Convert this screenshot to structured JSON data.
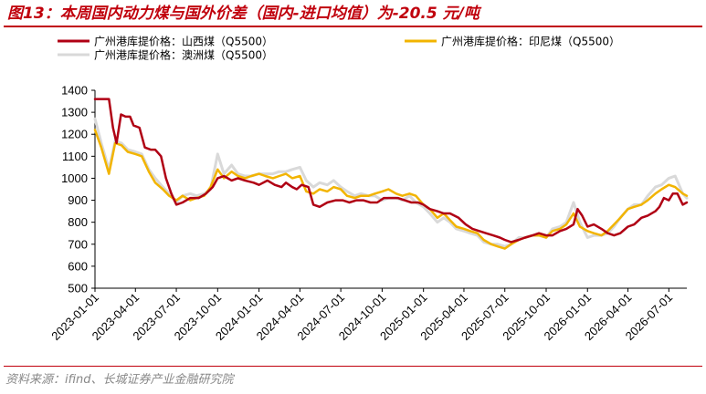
{
  "header": {
    "title": "图13：本周国内动力煤与国外价差（国内-进口均值）为-20.5 元/吨"
  },
  "footer": {
    "source": "资料来源：ifind、长城证券产业金融研究院"
  },
  "colors": {
    "accent": "#c0000c",
    "source_text": "#888888"
  },
  "chart_data": {
    "type": "line",
    "title": "图13：本周国内动力煤与国外价差（国内-进口均值）为-20.5 元/吨",
    "xlabel": "",
    "ylabel": "",
    "ylim": [
      500,
      1400
    ],
    "yticks": [
      500,
      600,
      700,
      800,
      900,
      1000,
      1100,
      1200,
      1300,
      1400
    ],
    "xticks": [
      "2023-01-01",
      "2023-04-01",
      "2023-07-01",
      "2023-10-01",
      "2024-01-01",
      "2024-04-01",
      "2024-07-01",
      "2024-10-01",
      "2025-01-01",
      "2025-04-01",
      "2025-07-01",
      "2025-10-01",
      "2026-01-01",
      "2026-04-01",
      "2026-07-01"
    ],
    "xlim": [
      "2023-01-01",
      "2026-08-10"
    ],
    "grid": false,
    "legend_position": "top",
    "series": [
      {
        "name": "广州港库提价格：山西煤（Q5500）",
        "color": "#b00014",
        "x": [
          "2023-01-01",
          "2023-01-20",
          "2023-02-01",
          "2023-02-10",
          "2023-02-18",
          "2023-02-28",
          "2023-03-10",
          "2023-03-20",
          "2023-03-28",
          "2023-04-10",
          "2023-04-22",
          "2023-05-05",
          "2023-05-15",
          "2023-05-28",
          "2023-06-08",
          "2023-06-20",
          "2023-07-01",
          "2023-07-15",
          "2023-08-01",
          "2023-08-20",
          "2023-09-05",
          "2023-09-20",
          "2023-10-01",
          "2023-10-15",
          "2023-11-01",
          "2023-11-15",
          "2023-12-01",
          "2023-12-20",
          "2024-01-01",
          "2024-01-20",
          "2024-02-05",
          "2024-02-20",
          "2024-03-01",
          "2024-03-15",
          "2024-03-25",
          "2024-04-05",
          "2024-04-20",
          "2024-05-01",
          "2024-05-15",
          "2024-06-01",
          "2024-06-20",
          "2024-07-05",
          "2024-07-20",
          "2024-08-05",
          "2024-08-20",
          "2024-09-05",
          "2024-09-20",
          "2024-10-05",
          "2024-10-20",
          "2024-11-05",
          "2024-11-20",
          "2024-12-05",
          "2024-12-20",
          "2025-01-01",
          "2025-01-15",
          "2025-02-01",
          "2025-02-15",
          "2025-03-01",
          "2025-03-20",
          "2025-04-05",
          "2025-04-20",
          "2025-05-05",
          "2025-05-20",
          "2025-06-05",
          "2025-06-20",
          "2025-07-01",
          "2025-07-15",
          "2025-08-01",
          "2025-08-15",
          "2025-09-01",
          "2025-09-15",
          "2025-10-01",
          "2025-10-15",
          "2025-11-01",
          "2025-11-15",
          "2025-12-01",
          "2025-12-10",
          "2025-12-20",
          "2026-01-01",
          "2026-01-15",
          "2026-02-01",
          "2026-02-15",
          "2026-03-01",
          "2026-03-15",
          "2026-04-01",
          "2026-04-15",
          "2026-05-01",
          "2026-05-15",
          "2026-06-01",
          "2026-06-10",
          "2026-06-20",
          "2026-07-01",
          "2026-07-10",
          "2026-07-20",
          "2026-08-01",
          "2026-08-10"
        ],
        "values": [
          1360,
          1360,
          1360,
          1230,
          1160,
          1290,
          1280,
          1280,
          1240,
          1230,
          1140,
          1130,
          1130,
          1100,
          1000,
          930,
          880,
          890,
          910,
          910,
          930,
          960,
          1000,
          1010,
          990,
          1000,
          990,
          980,
          970,
          990,
          970,
          960,
          980,
          960,
          950,
          970,
          960,
          880,
          870,
          890,
          900,
          900,
          890,
          900,
          900,
          890,
          890,
          910,
          910,
          910,
          900,
          890,
          890,
          880,
          860,
          850,
          840,
          840,
          820,
          790,
          770,
          760,
          750,
          740,
          730,
          720,
          710,
          720,
          730,
          740,
          750,
          740,
          740,
          760,
          770,
          790,
          860,
          830,
          780,
          790,
          770,
          750,
          740,
          750,
          780,
          790,
          820,
          830,
          850,
          870,
          910,
          900,
          930,
          930,
          880,
          890
        ]
      },
      {
        "name": "广州港库提价格：印尼煤（Q5500）",
        "color": "#f2b400",
        "x": [
          "2023-01-01",
          "2023-01-15",
          "2023-02-01",
          "2023-02-15",
          "2023-03-01",
          "2023-03-15",
          "2023-04-01",
          "2023-04-15",
          "2023-05-01",
          "2023-05-15",
          "2023-06-01",
          "2023-06-15",
          "2023-07-01",
          "2023-07-15",
          "2023-08-01",
          "2023-08-15",
          "2023-09-01",
          "2023-09-15",
          "2023-10-01",
          "2023-10-15",
          "2023-11-01",
          "2023-11-15",
          "2023-12-01",
          "2023-12-15",
          "2024-01-01",
          "2024-01-15",
          "2024-02-01",
          "2024-02-15",
          "2024-03-01",
          "2024-03-15",
          "2024-04-01",
          "2024-04-15",
          "2024-05-01",
          "2024-05-15",
          "2024-06-01",
          "2024-06-15",
          "2024-07-01",
          "2024-07-15",
          "2024-08-01",
          "2024-08-15",
          "2024-09-01",
          "2024-09-15",
          "2024-10-01",
          "2024-10-15",
          "2024-11-01",
          "2024-11-15",
          "2024-12-01",
          "2024-12-15",
          "2025-01-01",
          "2025-01-15",
          "2025-02-01",
          "2025-02-15",
          "2025-03-01",
          "2025-03-15",
          "2025-04-01",
          "2025-04-15",
          "2025-05-01",
          "2025-05-15",
          "2025-06-01",
          "2025-06-15",
          "2025-07-01",
          "2025-07-15",
          "2025-08-01",
          "2025-08-15",
          "2025-09-01",
          "2025-09-15",
          "2025-10-01",
          "2025-10-15",
          "2025-11-01",
          "2025-11-15",
          "2025-12-01",
          "2025-12-15",
          "2026-01-01",
          "2026-01-15",
          "2026-02-01",
          "2026-02-15",
          "2026-03-01",
          "2026-03-15",
          "2026-04-01",
          "2026-04-15",
          "2026-05-01",
          "2026-05-15",
          "2026-06-01",
          "2026-06-15",
          "2026-07-01",
          "2026-07-15",
          "2026-08-01",
          "2026-08-10"
        ],
        "values": [
          1220,
          1140,
          1020,
          1160,
          1150,
          1120,
          1110,
          1100,
          1030,
          980,
          950,
          920,
          900,
          920,
          900,
          910,
          920,
          960,
          1040,
          1000,
          1030,
          1010,
          1000,
          1010,
          1020,
          1010,
          1000,
          1010,
          1020,
          1000,
          1010,
          940,
          930,
          950,
          940,
          960,
          950,
          920,
          910,
          920,
          920,
          930,
          940,
          950,
          930,
          920,
          930,
          920,
          880,
          860,
          820,
          840,
          810,
          780,
          770,
          760,
          750,
          720,
          700,
          690,
          680,
          700,
          720,
          730,
          740,
          740,
          730,
          760,
          770,
          790,
          840,
          780,
          760,
          750,
          740,
          760,
          790,
          820,
          860,
          870,
          880,
          900,
          930,
          950,
          970,
          960,
          930,
          920
        ]
      },
      {
        "name": "广州港库提价格：澳洲煤（Q5500）",
        "color": "#d9d9d9",
        "x": [
          "2023-01-01",
          "2023-01-15",
          "2023-02-01",
          "2023-02-15",
          "2023-03-01",
          "2023-03-15",
          "2023-04-01",
          "2023-04-15",
          "2023-05-01",
          "2023-05-15",
          "2023-06-01",
          "2023-06-15",
          "2023-07-01",
          "2023-07-15",
          "2023-08-01",
          "2023-08-15",
          "2023-09-01",
          "2023-09-15",
          "2023-10-01",
          "2023-10-15",
          "2023-11-01",
          "2023-11-15",
          "2023-12-01",
          "2023-12-15",
          "2024-01-01",
          "2024-01-15",
          "2024-02-01",
          "2024-02-15",
          "2024-03-01",
          "2024-03-15",
          "2024-04-01",
          "2024-04-15",
          "2024-05-01",
          "2024-05-15",
          "2024-06-01",
          "2024-06-15",
          "2024-07-01",
          "2024-07-15",
          "2024-08-01",
          "2024-08-15",
          "2024-09-01",
          "2024-09-15",
          "2024-10-01",
          "2024-10-15",
          "2024-11-01",
          "2024-11-15",
          "2024-12-01",
          "2024-12-15",
          "2025-01-01",
          "2025-01-15",
          "2025-02-01",
          "2025-02-15",
          "2025-03-01",
          "2025-03-15",
          "2025-04-01",
          "2025-04-15",
          "2025-05-01",
          "2025-05-15",
          "2025-06-01",
          "2025-06-15",
          "2025-07-01",
          "2025-07-15",
          "2025-08-01",
          "2025-08-15",
          "2025-09-01",
          "2025-09-15",
          "2025-10-01",
          "2025-10-15",
          "2025-11-01",
          "2025-11-15",
          "2025-12-01",
          "2025-12-15",
          "2026-01-01",
          "2026-01-15",
          "2026-02-01",
          "2026-02-15",
          "2026-03-01",
          "2026-03-15",
          "2026-04-01",
          "2026-04-15",
          "2026-05-01",
          "2026-05-15",
          "2026-06-01",
          "2026-06-15",
          "2026-07-01",
          "2026-07-15",
          "2026-08-01",
          "2026-08-10"
        ],
        "values": [
          1270,
          1160,
          1040,
          1170,
          1160,
          1130,
          1120,
          1110,
          1040,
          1000,
          960,
          930,
          890,
          920,
          930,
          920,
          930,
          950,
          1110,
          1020,
          1060,
          1020,
          1010,
          1010,
          1020,
          1020,
          1020,
          1030,
          1030,
          1040,
          1050,
          990,
          960,
          980,
          970,
          990,
          960,
          940,
          920,
          930,
          920,
          920,
          900,
          910,
          910,
          900,
          920,
          890,
          870,
          840,
          800,
          820,
          800,
          770,
          760,
          750,
          740,
          710,
          700,
          700,
          690,
          700,
          730,
          730,
          740,
          740,
          730,
          770,
          780,
          800,
          890,
          800,
          730,
          740,
          740,
          750,
          780,
          820,
          860,
          880,
          880,
          920,
          960,
          970,
          1000,
          1010,
          930,
          910
        ]
      }
    ]
  }
}
